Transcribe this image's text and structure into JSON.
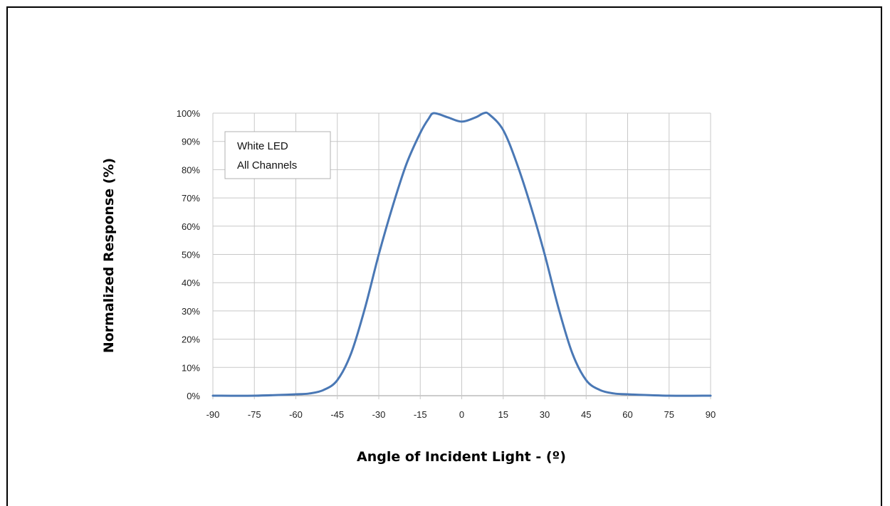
{
  "chart_data": {
    "type": "line",
    "xlabel": "Angle of Incident Light - (º)",
    "ylabel": "Normalized Response (%)",
    "xlim": [
      -90,
      90
    ],
    "ylim": [
      0,
      100
    ],
    "x_ticks": [
      "-90",
      "-75",
      "-60",
      "-45",
      "-30",
      "-15",
      "0",
      "15",
      "30",
      "45",
      "60",
      "75",
      "90"
    ],
    "y_ticks": [
      "0%",
      "10%",
      "20%",
      "30%",
      "40%",
      "50%",
      "60%",
      "70%",
      "80%",
      "90%",
      "100%"
    ],
    "grid": true,
    "legend_box": {
      "lines": [
        "White LED",
        "All Channels"
      ],
      "placement": "top-left"
    },
    "line_color": "#4a78b5",
    "series": [
      {
        "x": [
          -90,
          -75,
          -60,
          -55,
          -50,
          -45,
          -40,
          -35,
          -30,
          -25,
          -20,
          -15,
          -12,
          -10,
          -5,
          0,
          5,
          8,
          10,
          15,
          20,
          25,
          30,
          35,
          40,
          45,
          50,
          55,
          60,
          75,
          90
        ],
        "values": [
          0,
          0,
          0.5,
          0.8,
          2,
          5.5,
          15,
          31,
          50,
          67,
          82,
          93,
          98,
          100,
          98.5,
          97,
          98.5,
          100,
          99.5,
          94,
          82,
          67,
          50,
          31,
          15,
          5.5,
          2,
          0.8,
          0.5,
          0,
          0
        ]
      }
    ]
  }
}
